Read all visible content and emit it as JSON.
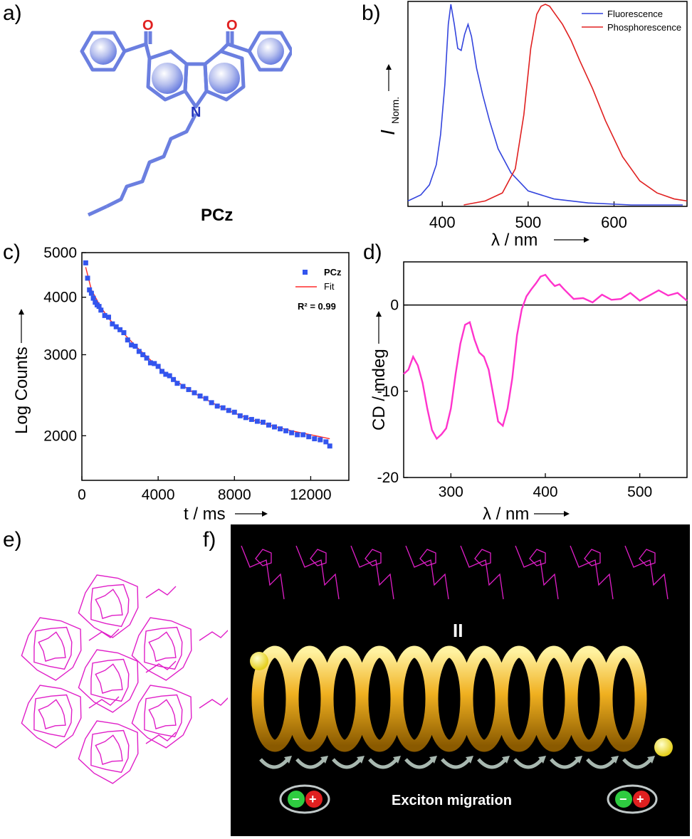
{
  "panels": {
    "a": "a)",
    "b": "b)",
    "c": "c)",
    "d": "d)",
    "e": "e)",
    "f": "f)"
  },
  "colors": {
    "molecule": "#6b7fe0",
    "fluo": "#3344dd",
    "phos": "#e02020",
    "decay": "#3355ee",
    "fit": "#ff2a2a",
    "cd": "#ff33cc",
    "crystal": "#e01ec8",
    "helix": "#f0b020"
  },
  "molecule": {
    "name": "PCz",
    "atom_o": "O",
    "atom_n": "N"
  },
  "chart_b": {
    "legend": [
      "Fluorescence",
      "Phosphorescence"
    ],
    "ylabel_main": "I",
    "ylabel_sub": "Norm.",
    "xlabel": "λ / nm",
    "xticks": [
      "400",
      "500",
      "600"
    ]
  },
  "chart_c": {
    "legend_data": "PCz",
    "legend_fit": "Fit",
    "r2": "R² = 0.99",
    "ylabel": "Log Counts",
    "xlabel": "t / ms",
    "yticks": [
      "5000",
      "4000",
      "3000",
      "2000"
    ],
    "xticks": [
      "0",
      "4000",
      "8000",
      "12000"
    ]
  },
  "chart_d": {
    "ylabel": "CD / mdeg",
    "xlabel": "λ / nm",
    "yticks": [
      "0",
      "-10",
      "-20"
    ],
    "xticks": [
      "300",
      "400",
      "500"
    ]
  },
  "panel_f": {
    "equals": "II",
    "caption": "Exciton migration",
    "minus": "−",
    "plus": "+"
  },
  "chart_data": [
    {
      "type": "line",
      "panel": "b",
      "xlabel": "λ / nm",
      "ylabel": "I Norm.",
      "xlim": [
        360,
        685
      ],
      "ylim": [
        0,
        1
      ],
      "series": [
        {
          "name": "Fluorescence",
          "x": [
            360,
            375,
            385,
            393,
            398,
            403,
            407,
            410,
            414,
            418,
            422,
            426,
            430,
            434,
            440,
            447,
            455,
            465,
            480,
            500,
            530,
            570,
            620,
            680
          ],
          "y": [
            0.02,
            0.05,
            0.1,
            0.2,
            0.35,
            0.6,
            0.9,
            1.0,
            0.9,
            0.78,
            0.77,
            0.85,
            0.9,
            0.84,
            0.68,
            0.55,
            0.42,
            0.28,
            0.16,
            0.07,
            0.03,
            0.01,
            0.0,
            0.0
          ]
        },
        {
          "name": "Phosphorescence",
          "x": [
            425,
            450,
            470,
            485,
            495,
            503,
            510,
            515,
            520,
            525,
            530,
            540,
            550,
            560,
            575,
            590,
            610,
            630,
            650,
            670,
            685
          ],
          "y": [
            0.0,
            0.02,
            0.06,
            0.18,
            0.45,
            0.78,
            0.95,
            0.99,
            1.0,
            0.99,
            0.96,
            0.9,
            0.82,
            0.72,
            0.58,
            0.42,
            0.24,
            0.12,
            0.06,
            0.03,
            0.02
          ]
        }
      ]
    },
    {
      "type": "scatter",
      "panel": "c",
      "xlabel": "t / ms",
      "ylabel": "Log Counts",
      "ylog": true,
      "xlim": [
        0,
        14000
      ],
      "ylim": [
        1600,
        5000
      ],
      "series": [
        {
          "name": "PCz",
          "x": [
            200,
            300,
            400,
            500,
            600,
            700,
            800,
            900,
            1000,
            1200,
            1400,
            1600,
            1800,
            2000,
            2200,
            2400,
            2600,
            2800,
            3000,
            3200,
            3400,
            3600,
            3800,
            4000,
            4200,
            4400,
            4600,
            4800,
            5000,
            5300,
            5600,
            5900,
            6200,
            6500,
            6800,
            7100,
            7400,
            7700,
            8000,
            8300,
            8600,
            8900,
            9200,
            9500,
            9800,
            10100,
            10400,
            10700,
            11000,
            11300,
            11600,
            11900,
            12200,
            12500,
            12800,
            13000
          ],
          "y": [
            4750,
            4400,
            4150,
            4080,
            3980,
            3900,
            3850,
            3820,
            3750,
            3650,
            3620,
            3500,
            3450,
            3400,
            3350,
            3230,
            3150,
            3130,
            3050,
            3000,
            2950,
            2880,
            2870,
            2830,
            2760,
            2720,
            2700,
            2650,
            2600,
            2560,
            2520,
            2480,
            2440,
            2410,
            2360,
            2320,
            2300,
            2270,
            2250,
            2210,
            2190,
            2170,
            2150,
            2140,
            2110,
            2090,
            2070,
            2050,
            2030,
            2010,
            2010,
            1990,
            1970,
            1960,
            1940,
            1900
          ]
        },
        {
          "name": "Fit",
          "x": [
            200,
            500,
            1000,
            1500,
            2000,
            3000,
            4000,
            5000,
            6000,
            7000,
            8000,
            9000,
            10000,
            11000,
            12000,
            13000
          ],
          "y": [
            4650,
            4150,
            3800,
            3560,
            3400,
            3080,
            2820,
            2620,
            2460,
            2340,
            2240,
            2160,
            2100,
            2050,
            2010,
            1970
          ]
        }
      ],
      "annotation": "R² = 0.99"
    },
    {
      "type": "line",
      "panel": "d",
      "xlabel": "λ / nm",
      "ylabel": "CD / mdeg",
      "xlim": [
        250,
        550
      ],
      "ylim": [
        -20,
        5
      ],
      "series": [
        {
          "name": "CD",
          "x": [
            250,
            255,
            260,
            265,
            270,
            275,
            280,
            285,
            290,
            295,
            300,
            305,
            310,
            315,
            320,
            325,
            330,
            335,
            340,
            345,
            350,
            355,
            360,
            365,
            370,
            375,
            380,
            385,
            390,
            395,
            400,
            405,
            410,
            415,
            420,
            430,
            440,
            450,
            460,
            470,
            480,
            490,
            500,
            510,
            520,
            530,
            540,
            550
          ],
          "y": [
            -8,
            -7.5,
            -6,
            -7,
            -9,
            -12,
            -14.5,
            -15.5,
            -15,
            -14.3,
            -12,
            -8,
            -4.5,
            -2.3,
            -2,
            -4,
            -5.5,
            -6,
            -7.5,
            -10.5,
            -13.5,
            -14,
            -12,
            -8.5,
            -3.5,
            -0.5,
            1,
            1.8,
            2.5,
            3.3,
            3.5,
            2.8,
            2.2,
            2.4,
            1.8,
            0.7,
            0.8,
            0.3,
            1.2,
            0.6,
            0.7,
            1.4,
            0.5,
            1.1,
            1.7,
            1.1,
            1.4,
            0.5
          ]
        }
      ]
    }
  ]
}
